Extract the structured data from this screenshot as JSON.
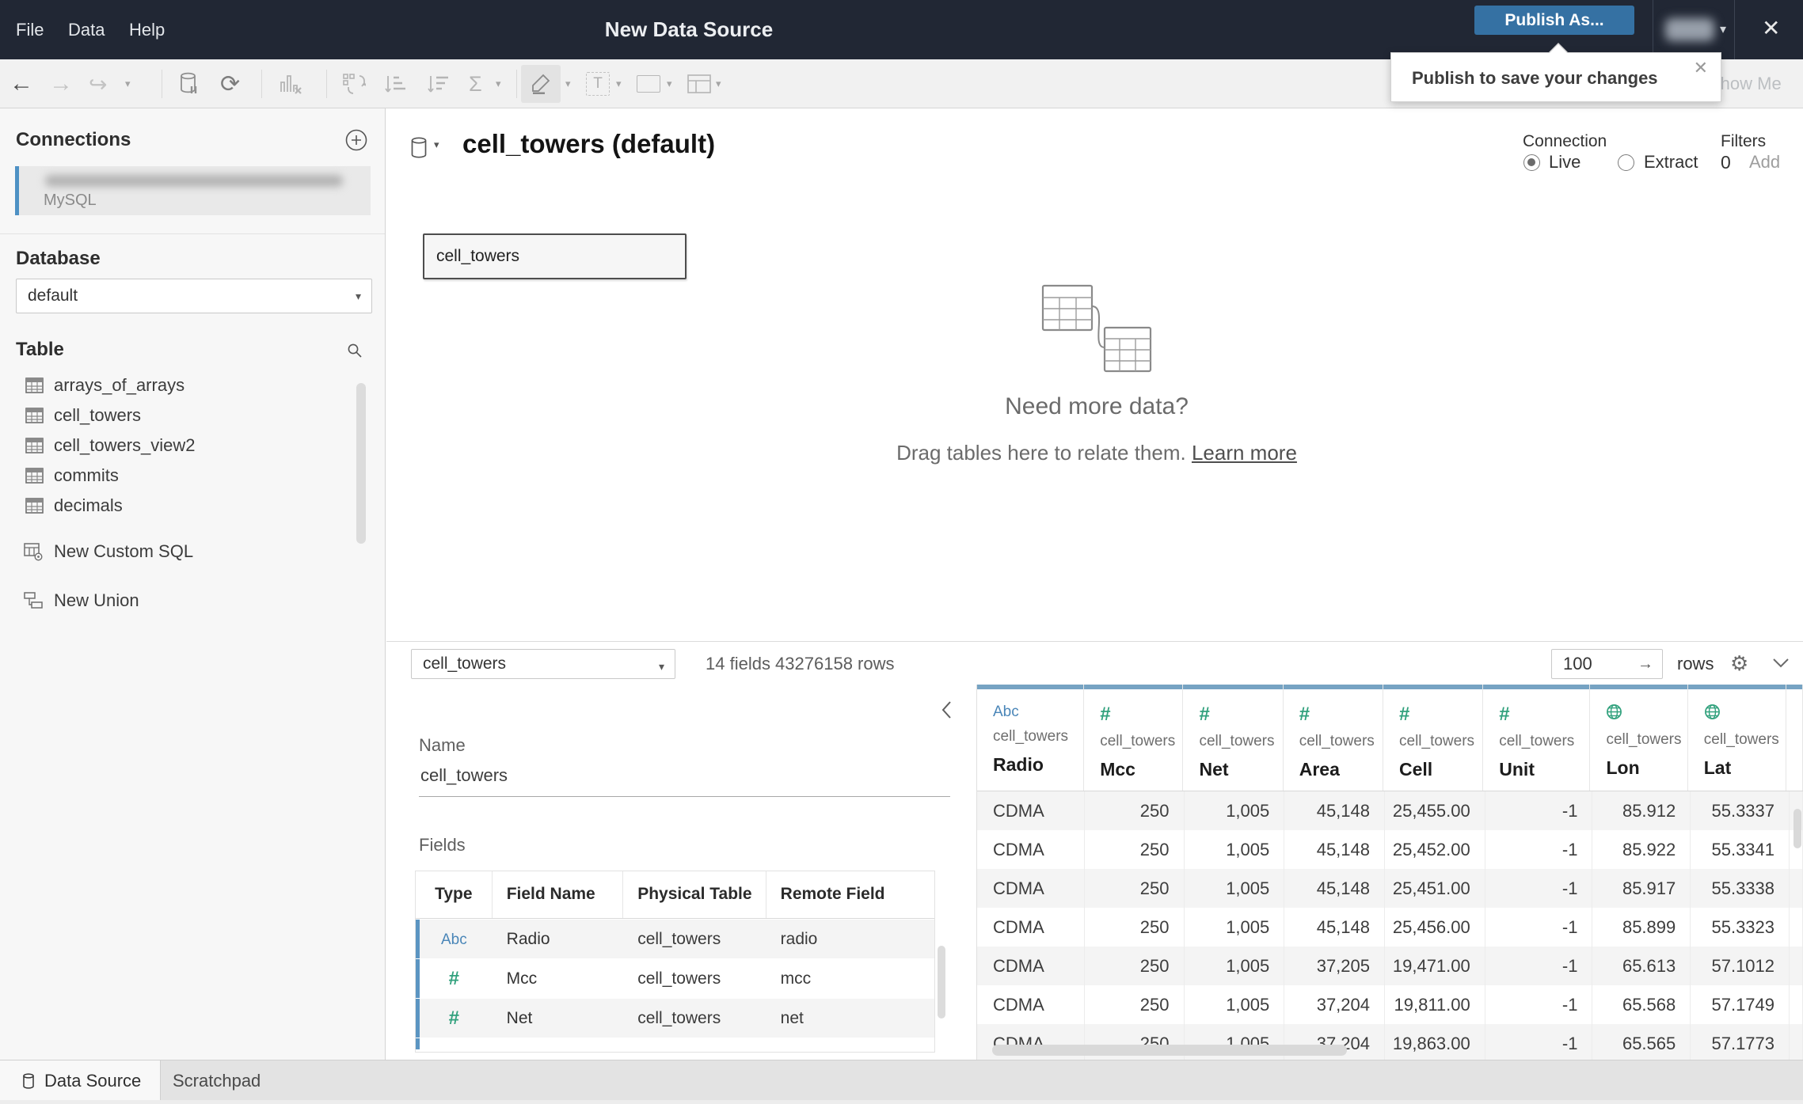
{
  "titlebar": {
    "menus": [
      "File",
      "Data",
      "Help"
    ],
    "title": "New Data Source",
    "publish_button": "Publish As...",
    "close": "✕"
  },
  "tooltip": {
    "text": "Publish to save your changes",
    "close": "✕"
  },
  "toolbar": {
    "show_me": "Show Me"
  },
  "sidebar": {
    "connections_heading": "Connections",
    "connection_subtitle": "MySQL",
    "database_heading": "Database",
    "database_selected": "default",
    "table_heading": "Table",
    "tables": [
      "arrays_of_arrays",
      "cell_towers",
      "cell_towers_view2",
      "commits",
      "decimals"
    ],
    "new_custom_sql": "New Custom SQL",
    "new_union": "New Union"
  },
  "canvas": {
    "datasource_title": "cell_towers (default)",
    "connection_label": "Connection",
    "connection_options": [
      "Live",
      "Extract"
    ],
    "connection_selected": "Live",
    "filters_label": "Filters",
    "filters_count": "0",
    "filters_add": "Add",
    "table_node_label": "cell_towers",
    "empty_title": "Need more data?",
    "empty_subtitle": "Drag tables here to relate them.",
    "empty_link": "Learn more"
  },
  "grid_toolbar": {
    "table_selected": "cell_towers",
    "summary": "14 fields 43276158 rows",
    "row_count": "100",
    "rows_label": "rows"
  },
  "metadata": {
    "name_label": "Name",
    "name_value": "cell_towers",
    "fields_label": "Fields",
    "columns": [
      "Type",
      "Field Name",
      "Physical Table",
      "Remote Field Name"
    ],
    "rows": [
      {
        "type": "Abc",
        "field": "Radio",
        "physical": "cell_towers",
        "remote": "radio"
      },
      {
        "type": "#",
        "field": "Mcc",
        "physical": "cell_towers",
        "remote": "mcc"
      },
      {
        "type": "#",
        "field": "Net",
        "physical": "cell_towers",
        "remote": "net"
      }
    ]
  },
  "data_grid": {
    "table_label": "cell_towers",
    "columns": [
      {
        "type": "Abc",
        "name": "Radio"
      },
      {
        "type": "#",
        "name": "Mcc"
      },
      {
        "type": "#",
        "name": "Net"
      },
      {
        "type": "#",
        "name": "Area"
      },
      {
        "type": "#",
        "name": "Cell"
      },
      {
        "type": "#",
        "name": "Unit"
      },
      {
        "type": "geo",
        "name": "Lon"
      },
      {
        "type": "geo",
        "name": "Lat"
      }
    ],
    "rows": [
      [
        "CDMA",
        "250",
        "1,005",
        "45,148",
        "25,455.00",
        "-1",
        "85.912",
        "55.3337"
      ],
      [
        "CDMA",
        "250",
        "1,005",
        "45,148",
        "25,452.00",
        "-1",
        "85.922",
        "55.3341"
      ],
      [
        "CDMA",
        "250",
        "1,005",
        "45,148",
        "25,451.00",
        "-1",
        "85.917",
        "55.3338"
      ],
      [
        "CDMA",
        "250",
        "1,005",
        "45,148",
        "25,456.00",
        "-1",
        "85.899",
        "55.3323"
      ],
      [
        "CDMA",
        "250",
        "1,005",
        "37,205",
        "19,471.00",
        "-1",
        "65.613",
        "57.1012"
      ],
      [
        "CDMA",
        "250",
        "1,005",
        "37,204",
        "19,811.00",
        "-1",
        "65.568",
        "57.1749"
      ],
      [
        "CDMA",
        "250",
        "1,005",
        "37,204",
        "19,863.00",
        "-1",
        "65.565",
        "57.1773"
      ]
    ]
  },
  "bottom_tabs": {
    "tabs": [
      "Data Source",
      "Scratchpad"
    ],
    "active": "Data Source"
  },
  "colors": {
    "publish_button": "#3571a3",
    "column_accent": "#76a3c3",
    "row_accent": "#5b95c2",
    "number_type_green": "#31a17d",
    "string_type_blue": "#4a86b8",
    "titlebar_bg": "#212734"
  }
}
